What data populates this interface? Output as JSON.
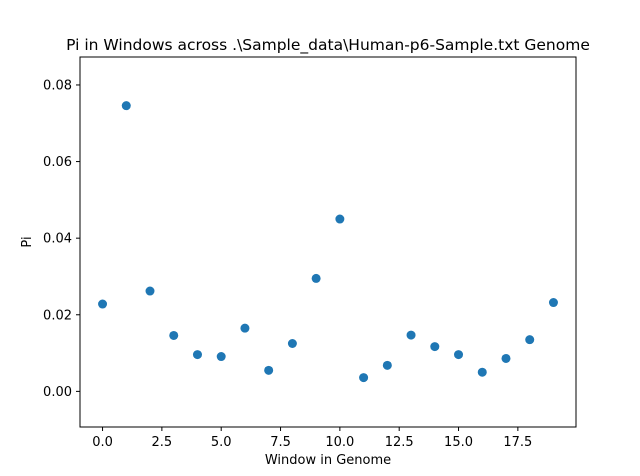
{
  "chart_data": {
    "type": "scatter",
    "title": "Pi in Windows across .\\Sample_data\\Human-p6-Sample.txt Genome",
    "xlabel": "Window in Genome",
    "ylabel": "Pi",
    "xlim": [
      -0.95,
      19.95
    ],
    "ylim": [
      -0.0093,
      0.0873
    ],
    "xticks": [
      0.0,
      2.5,
      5.0,
      7.5,
      10.0,
      12.5,
      15.0,
      17.5
    ],
    "xtick_labels": [
      "0.0",
      "2.5",
      "5.0",
      "7.5",
      "10.0",
      "12.5",
      "15.0",
      "17.5"
    ],
    "yticks": [
      0.0,
      0.02,
      0.04,
      0.06,
      0.08
    ],
    "ytick_labels": [
      "0.00",
      "0.02",
      "0.04",
      "0.06",
      "0.08"
    ],
    "grid": false,
    "marker_color": "#1f77b4",
    "x": [
      0,
      1,
      2,
      3,
      4,
      5,
      6,
      7,
      8,
      9,
      10,
      11,
      12,
      13,
      14,
      15,
      16,
      17,
      18,
      19
    ],
    "y": [
      0.0228,
      0.0746,
      0.0262,
      0.0146,
      0.0096,
      0.0091,
      0.0165,
      0.0055,
      0.0125,
      0.0295,
      0.045,
      0.0036,
      0.0068,
      0.0147,
      0.0117,
      0.0096,
      0.005,
      0.0086,
      0.0135,
      0.0232
    ]
  }
}
